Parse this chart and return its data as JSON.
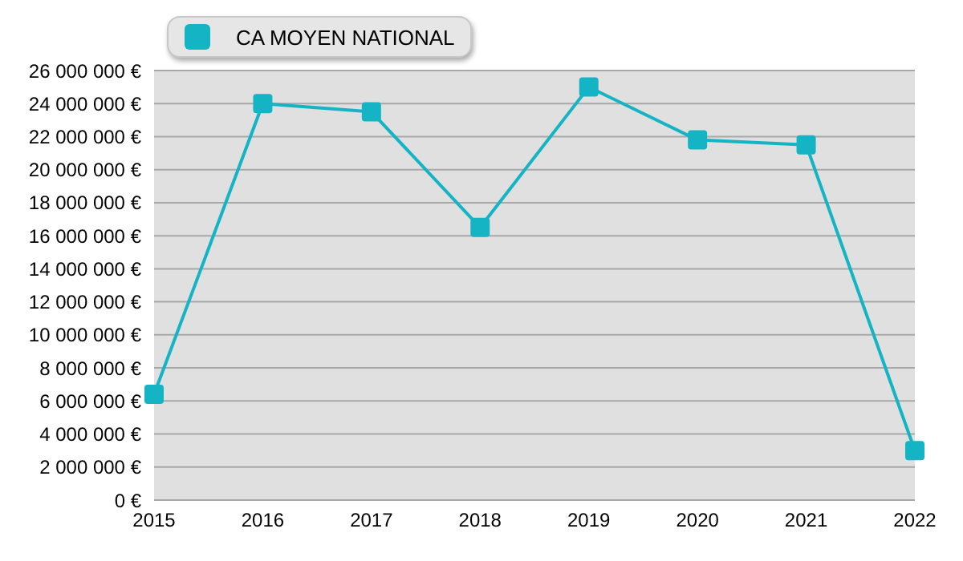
{
  "chart_data": {
    "type": "line",
    "categories": [
      "2015",
      "2016",
      "2017",
      "2018",
      "2019",
      "2020",
      "2021",
      "2022"
    ],
    "series": [
      {
        "name": "CA MOYEN NATIONAL",
        "color": "#14b4c4",
        "values": [
          6400000,
          24000000,
          23500000,
          16500000,
          25000000,
          21800000,
          21500000,
          3000000
        ]
      }
    ],
    "ylim": [
      0,
      26000000
    ],
    "yticks": [
      {
        "value": 0,
        "label": "0 €"
      },
      {
        "value": 2000000,
        "label": "2 000 000 €"
      },
      {
        "value": 4000000,
        "label": "4 000 000 €"
      },
      {
        "value": 6000000,
        "label": "6 000 000 €"
      },
      {
        "value": 8000000,
        "label": "8 000 000 €"
      },
      {
        "value": 10000000,
        "label": "10 000 000 €"
      },
      {
        "value": 12000000,
        "label": "12 000 000 €"
      },
      {
        "value": 14000000,
        "label": "14 000 000 €"
      },
      {
        "value": 16000000,
        "label": "16 000 000 €"
      },
      {
        "value": 18000000,
        "label": "18 000 000 €"
      },
      {
        "value": 20000000,
        "label": "20 000 000 €"
      },
      {
        "value": 22000000,
        "label": "22 000 000 €"
      },
      {
        "value": 24000000,
        "label": "24 000 000 €"
      },
      {
        "value": 26000000,
        "label": "26 000 000 €"
      }
    ],
    "grid": "y",
    "legend": "top left",
    "marker": "square",
    "line_style": "solid"
  }
}
